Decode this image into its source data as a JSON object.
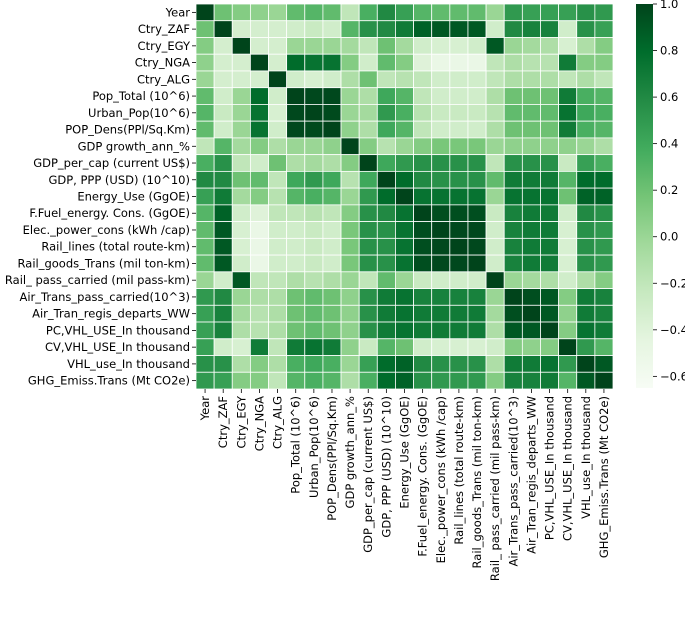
{
  "chart_data": {
    "type": "heatmap",
    "title": "",
    "xlabel": "",
    "ylabel": "",
    "labels": [
      "Year",
      "Ctry_ZAF",
      "Ctry_EGY",
      "Ctry_NGA",
      "Ctry_ALG",
      "Pop_Total (10^6)",
      "Urban_Pop(10^6)",
      "POP_Dens(PPl/Sq.Km)",
      "GDP growth_ann_%",
      "GDP_per_cap (current US$)",
      "GDP, PPP (USD) (10^10)",
      "Energy_Use (GgOE)",
      "F.Fuel_energy. Cons. (GgOE)",
      "Elec._power_cons (kWh /cap)",
      "Rail_lines (total route-km)",
      "Rail_goods_Trans (mil ton-km)",
      "Rail_ pass_carried (mil pass-km)",
      "Air_Trans_pass_carried(10^3)",
      "Air_Tran_regis_departs_WW",
      "PC,VHL_USE_In thousand",
      "CV,VHL_USE_In thousand",
      "VHL_use_In thousand ",
      "GHG_Emiss.Trans (Mt CO2e)"
    ],
    "values": [
      [
        1.0,
        0.2,
        0.1,
        0.05,
        0.0,
        0.25,
        0.3,
        0.25,
        -0.2,
        0.35,
        0.6,
        0.45,
        0.3,
        0.25,
        0.25,
        0.25,
        0.0,
        0.5,
        0.45,
        0.45,
        0.45,
        0.55,
        0.5
      ],
      [
        0.2,
        1.0,
        -0.33,
        -0.33,
        -0.33,
        -0.3,
        -0.25,
        -0.3,
        0.3,
        0.55,
        0.6,
        0.7,
        0.85,
        0.9,
        0.9,
        0.9,
        -0.3,
        0.6,
        0.65,
        0.65,
        -0.3,
        0.55,
        0.45
      ],
      [
        0.1,
        -0.33,
        1.0,
        -0.33,
        -0.33,
        0.0,
        0.0,
        0.0,
        -0.05,
        -0.2,
        0.2,
        -0.05,
        -0.3,
        -0.35,
        -0.35,
        -0.3,
        0.9,
        0.0,
        -0.05,
        -0.1,
        -0.35,
        -0.1,
        0.1
      ],
      [
        0.05,
        -0.33,
        -0.33,
        1.0,
        -0.33,
        0.8,
        0.75,
        0.75,
        0.1,
        -0.3,
        0.25,
        0.1,
        -0.4,
        -0.5,
        -0.5,
        -0.5,
        -0.2,
        -0.1,
        -0.15,
        -0.15,
        0.7,
        0.1,
        0.1
      ],
      [
        0.0,
        -0.33,
        -0.33,
        -0.33,
        1.0,
        -0.3,
        -0.35,
        -0.3,
        -0.1,
        0.2,
        -0.2,
        -0.15,
        -0.2,
        -0.3,
        -0.3,
        -0.3,
        -0.2,
        -0.1,
        -0.1,
        -0.1,
        -0.2,
        -0.1,
        -0.2
      ],
      [
        0.25,
        -0.3,
        0.0,
        0.8,
        -0.3,
        1.0,
        0.98,
        0.98,
        0.0,
        -0.1,
        0.4,
        0.3,
        -0.2,
        -0.3,
        -0.3,
        -0.3,
        -0.1,
        0.2,
        0.2,
        0.2,
        0.7,
        0.35,
        0.3
      ],
      [
        0.3,
        -0.25,
        0.0,
        0.75,
        -0.35,
        0.98,
        1.0,
        0.97,
        0.0,
        -0.05,
        0.5,
        0.35,
        -0.15,
        -0.25,
        -0.25,
        -0.25,
        -0.15,
        0.25,
        0.25,
        0.25,
        0.75,
        0.4,
        0.35
      ],
      [
        0.25,
        -0.3,
        0.0,
        0.75,
        -0.3,
        0.98,
        0.97,
        1.0,
        0.05,
        -0.1,
        0.4,
        0.3,
        -0.2,
        -0.3,
        -0.3,
        -0.3,
        -0.1,
        0.2,
        0.2,
        0.2,
        0.7,
        0.35,
        0.3
      ],
      [
        -0.2,
        0.3,
        -0.05,
        0.1,
        -0.1,
        0.0,
        0.0,
        0.05,
        1.0,
        0.1,
        -0.15,
        0.0,
        0.1,
        0.15,
        0.15,
        0.15,
        0.0,
        0.05,
        0.05,
        0.05,
        0.05,
        0.0,
        -0.1
      ],
      [
        0.35,
        0.55,
        -0.2,
        -0.3,
        0.2,
        -0.1,
        -0.05,
        -0.1,
        0.1,
        1.0,
        0.4,
        0.5,
        0.55,
        0.55,
        0.55,
        0.55,
        -0.2,
        0.55,
        0.55,
        0.55,
        -0.25,
        0.45,
        0.35
      ],
      [
        0.6,
        0.6,
        0.2,
        0.25,
        -0.2,
        0.4,
        0.5,
        0.4,
        -0.15,
        0.4,
        1.0,
        0.8,
        0.6,
        0.55,
        0.55,
        0.55,
        0.25,
        0.7,
        0.7,
        0.7,
        0.3,
        0.8,
        0.8
      ],
      [
        0.45,
        0.7,
        -0.05,
        0.1,
        -0.15,
        0.3,
        0.35,
        0.3,
        0.0,
        0.5,
        0.8,
        1.0,
        0.75,
        0.75,
        0.75,
        0.75,
        0.0,
        0.75,
        0.75,
        0.75,
        0.2,
        0.85,
        0.85
      ],
      [
        0.3,
        0.85,
        -0.3,
        -0.4,
        -0.2,
        -0.2,
        -0.15,
        -0.2,
        0.1,
        0.55,
        0.6,
        0.75,
        1.0,
        0.95,
        0.95,
        0.95,
        -0.25,
        0.65,
        0.7,
        0.7,
        -0.3,
        0.6,
        0.55
      ],
      [
        0.25,
        0.9,
        -0.35,
        -0.5,
        -0.3,
        -0.3,
        -0.25,
        -0.3,
        0.15,
        0.55,
        0.55,
        0.75,
        0.95,
        1.0,
        0.98,
        0.98,
        -0.3,
        0.65,
        0.7,
        0.7,
        -0.35,
        0.55,
        0.5
      ],
      [
        0.25,
        0.9,
        -0.35,
        -0.5,
        -0.3,
        -0.3,
        -0.25,
        -0.3,
        0.15,
        0.55,
        0.55,
        0.75,
        0.95,
        0.98,
        1.0,
        0.98,
        -0.3,
        0.65,
        0.7,
        0.7,
        -0.35,
        0.55,
        0.5
      ],
      [
        0.25,
        0.9,
        -0.3,
        -0.5,
        -0.3,
        -0.3,
        -0.25,
        -0.3,
        0.15,
        0.55,
        0.55,
        0.75,
        0.95,
        0.98,
        0.98,
        1.0,
        -0.3,
        0.65,
        0.7,
        0.7,
        -0.35,
        0.55,
        0.5
      ],
      [
        0.0,
        -0.3,
        0.9,
        -0.2,
        -0.2,
        -0.1,
        -0.15,
        -0.1,
        0.0,
        -0.2,
        0.25,
        0.0,
        -0.25,
        -0.3,
        -0.3,
        -0.3,
        1.0,
        0.0,
        -0.05,
        -0.1,
        -0.3,
        -0.1,
        0.1
      ],
      [
        0.5,
        0.6,
        0.0,
        -0.1,
        -0.1,
        0.2,
        0.25,
        0.2,
        0.05,
        0.55,
        0.7,
        0.75,
        0.65,
        0.65,
        0.65,
        0.65,
        0.0,
        1.0,
        0.95,
        0.9,
        0.1,
        0.7,
        0.65
      ],
      [
        0.45,
        0.65,
        -0.05,
        -0.15,
        -0.1,
        0.2,
        0.25,
        0.2,
        0.05,
        0.55,
        0.7,
        0.75,
        0.7,
        0.7,
        0.7,
        0.7,
        -0.05,
        0.95,
        1.0,
        0.9,
        0.05,
        0.7,
        0.65
      ],
      [
        0.45,
        0.65,
        -0.1,
        -0.15,
        -0.1,
        0.2,
        0.25,
        0.2,
        0.05,
        0.55,
        0.7,
        0.75,
        0.7,
        0.7,
        0.7,
        0.7,
        -0.1,
        0.9,
        0.9,
        1.0,
        0.1,
        0.75,
        0.7
      ],
      [
        0.45,
        -0.3,
        -0.35,
        0.7,
        -0.2,
        0.7,
        0.75,
        0.7,
        0.05,
        -0.25,
        0.3,
        0.2,
        -0.3,
        -0.35,
        -0.35,
        -0.35,
        -0.3,
        0.1,
        0.05,
        0.1,
        1.0,
        0.5,
        0.3
      ],
      [
        0.55,
        0.55,
        -0.1,
        0.1,
        -0.1,
        0.35,
        0.4,
        0.35,
        0.0,
        0.45,
        0.8,
        0.85,
        0.6,
        0.55,
        0.55,
        0.55,
        -0.1,
        0.7,
        0.7,
        0.75,
        0.5,
        1.0,
        0.9
      ],
      [
        0.5,
        0.45,
        0.1,
        0.1,
        -0.2,
        0.3,
        0.35,
        0.3,
        -0.1,
        0.35,
        0.8,
        0.85,
        0.55,
        0.5,
        0.5,
        0.5,
        0.1,
        0.65,
        0.65,
        0.7,
        0.3,
        0.9,
        1.0
      ]
    ],
    "colorbar": {
      "min": -0.65,
      "max": 1.0,
      "ticks": [
        "1.0",
        "0.8",
        "0.6",
        "0.4",
        "0.2",
        "0.0",
        "−0.2",
        "−0.4",
        "−0.6"
      ],
      "tick_values": [
        1.0,
        0.8,
        0.6,
        0.4,
        0.2,
        0.0,
        -0.2,
        -0.4,
        -0.6
      ],
      "colormap": "Greens",
      "color_stops": [
        "#f7fcf5",
        "#e5f5e0",
        "#c7e9c0",
        "#a1d99b",
        "#74c476",
        "#41ab5d",
        "#238b45",
        "#006d2c",
        "#00441b"
      ]
    },
    "grid": "white cell borders",
    "legend": "colorbar right"
  }
}
